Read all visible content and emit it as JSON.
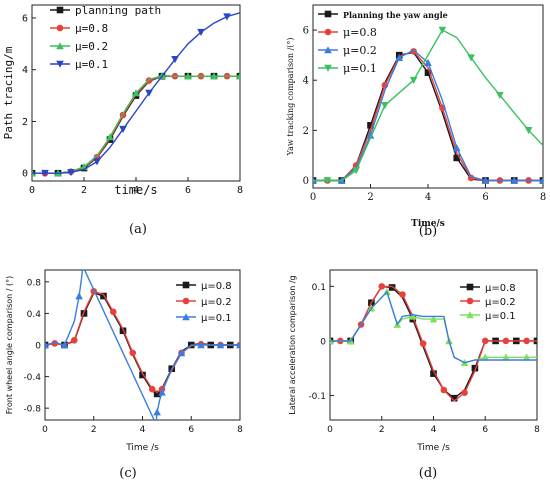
{
  "colors": {
    "black": "#1a1a1a",
    "red": "#e8403a",
    "blue": "#3a7de0",
    "green": "#3cc060",
    "blue_dark": "#2a45c8",
    "green_light": "#7ee05a",
    "frame": "#222222"
  },
  "chart_data": [
    {
      "id": "a",
      "type": "line",
      "caption": "(a)",
      "xlabel": "time/s",
      "ylabel": "Path tracing/m",
      "xlim": [
        0,
        8
      ],
      "ylim": [
        -0.3,
        6.5
      ],
      "xticks": [
        0,
        2,
        4,
        6,
        8
      ],
      "yticks": [
        0,
        2,
        4,
        6
      ],
      "xtick_labels": [
        "0",
        "2",
        "4",
        "6",
        "8"
      ],
      "ytick_labels": [
        "0",
        "2",
        "4",
        "6"
      ],
      "legend": {
        "placement": "top-left",
        "entries": [
          "planning path",
          "μ=0.8",
          "μ=0.2",
          "μ=0.1"
        ]
      },
      "series": [
        {
          "name": "planning path",
          "color": "#1a1a1a",
          "marker": "square",
          "x": [
            0,
            0.5,
            1,
            1.5,
            2,
            2.5,
            3,
            3.5,
            4,
            4.5,
            5,
            5.5,
            6,
            6.5,
            7,
            7.5,
            8
          ],
          "y": [
            0,
            0,
            0,
            0.05,
            0.2,
            0.6,
            1.3,
            2.2,
            3.0,
            3.55,
            3.75,
            3.75,
            3.75,
            3.75,
            3.75,
            3.75,
            3.75
          ]
        },
        {
          "name": "μ=0.8",
          "color": "#e8403a",
          "marker": "circle",
          "x": [
            0,
            0.5,
            1,
            1.5,
            2,
            2.5,
            3,
            3.5,
            4,
            4.5,
            5,
            5.5,
            6,
            6.5,
            7,
            7.5,
            8
          ],
          "y": [
            0,
            0,
            0,
            0.06,
            0.22,
            0.62,
            1.35,
            2.25,
            3.05,
            3.58,
            3.76,
            3.75,
            3.75,
            3.75,
            3.75,
            3.75,
            3.75
          ]
        },
        {
          "name": "μ=0.2",
          "color": "#3cc060",
          "marker": "triangle-up",
          "x": [
            0,
            0.5,
            1,
            1.5,
            2,
            2.5,
            3,
            3.5,
            4,
            4.5,
            5,
            5.5,
            6,
            6.5,
            7,
            7.5,
            8
          ],
          "y": [
            0,
            0,
            0,
            0.07,
            0.25,
            0.68,
            1.4,
            2.3,
            3.1,
            3.62,
            3.77,
            3.75,
            3.75,
            3.75,
            3.75,
            3.75,
            3.75
          ]
        },
        {
          "name": "μ=0.1",
          "color": "#2a45c8",
          "marker": "triangle-down",
          "x": [
            0,
            0.5,
            1,
            1.5,
            2,
            2.5,
            3,
            3.5,
            4,
            4.5,
            5,
            5.5,
            6,
            6.5,
            7,
            7.5,
            8
          ],
          "y": [
            0,
            0,
            0,
            0.03,
            0.15,
            0.45,
            1.0,
            1.7,
            2.4,
            3.1,
            3.75,
            4.4,
            5.0,
            5.45,
            5.8,
            6.05,
            6.2
          ]
        }
      ]
    },
    {
      "id": "b",
      "type": "line",
      "caption": "(b)",
      "xlabel": "Time/s",
      "ylabel": "Yaw tracking comparison /(°)",
      "xlim": [
        0,
        8
      ],
      "ylim": [
        -0.3,
        7.0
      ],
      "xticks": [
        0,
        2,
        4,
        6,
        8
      ],
      "yticks": [
        0,
        2,
        4,
        6
      ],
      "xtick_labels": [
        "0",
        "2",
        "4",
        "6",
        "8"
      ],
      "ytick_labels": [
        "0",
        "2",
        "4",
        "6"
      ],
      "legend": {
        "placement": "top-left",
        "entries": [
          "Planning the yaw angle",
          "μ=0.8",
          "μ=0.2",
          "μ=0.1"
        ]
      },
      "series": [
        {
          "name": "Planning the yaw angle",
          "color": "#1a1a1a",
          "marker": "square",
          "x": [
            0,
            0.5,
            1,
            1.5,
            2,
            2.5,
            3,
            3.5,
            4,
            4.5,
            5,
            5.5,
            6,
            6.5,
            7,
            7.5,
            8
          ],
          "y": [
            0,
            0,
            0,
            0.6,
            2.2,
            3.9,
            5.0,
            5.1,
            4.3,
            2.7,
            0.9,
            0.05,
            0,
            0,
            0,
            0,
            0
          ]
        },
        {
          "name": "μ=0.8",
          "color": "#e8403a",
          "marker": "circle",
          "x": [
            0,
            0.5,
            1,
            1.5,
            2,
            2.5,
            3,
            3.5,
            4,
            4.5,
            5,
            5.5,
            6,
            6.5,
            7,
            7.5,
            8
          ],
          "y": [
            0,
            0,
            0,
            0.6,
            2.0,
            3.8,
            4.95,
            5.15,
            4.5,
            2.9,
            1.1,
            0.1,
            0,
            0,
            0,
            0,
            0
          ]
        },
        {
          "name": "μ=0.2",
          "color": "#3a7de0",
          "marker": "triangle-up",
          "x": [
            0,
            0.5,
            1,
            1.5,
            2,
            2.5,
            3,
            3.5,
            4,
            4.5,
            5,
            5.5,
            6,
            6.5,
            7,
            7.5,
            8
          ],
          "y": [
            0,
            0,
            0,
            0.5,
            1.8,
            3.6,
            4.9,
            5.2,
            4.7,
            3.2,
            1.3,
            0.15,
            0,
            0,
            0,
            0,
            0
          ]
        },
        {
          "name": "μ=0.1",
          "color": "#3cc060",
          "marker": "triangle-down",
          "x": [
            0,
            0.5,
            1,
            1.5,
            2,
            2.5,
            3,
            3.5,
            4,
            4.5,
            5,
            5.5,
            6,
            6.5,
            7,
            7.5,
            8
          ],
          "y": [
            0,
            0,
            0,
            0.4,
            1.7,
            3.0,
            3.5,
            4.0,
            5.0,
            6.0,
            5.7,
            4.9,
            4.1,
            3.4,
            2.7,
            2.0,
            1.4
          ]
        }
      ]
    },
    {
      "id": "c",
      "type": "line",
      "caption": "(c)",
      "xlabel": "Time /s",
      "ylabel": "Front wheel angle comparison / (°)",
      "xlim": [
        0,
        8
      ],
      "ylim": [
        -0.95,
        0.95
      ],
      "xticks": [
        0,
        2,
        4,
        6,
        8
      ],
      "yticks": [
        -0.8,
        -0.4,
        0,
        0.4,
        0.8
      ],
      "xtick_labels": [
        "0",
        "2",
        "4",
        "6",
        "8"
      ],
      "ytick_labels": [
        "-0.8",
        "-0.4",
        "0",
        "0.4",
        "0.8"
      ],
      "legend": {
        "placement": "top-right",
        "entries": [
          "μ=0.8",
          "μ=0.2",
          "μ=0.1"
        ]
      },
      "series": [
        {
          "name": "μ=0.8",
          "color": "#1a1a1a",
          "marker": "square",
          "x": [
            0,
            0.4,
            0.8,
            1.2,
            1.6,
            2.0,
            2.4,
            2.8,
            3.2,
            3.6,
            4.0,
            4.4,
            4.6,
            4.8,
            5.2,
            5.6,
            6.0,
            6.4,
            6.8,
            7.2,
            7.6,
            8.0
          ],
          "y": [
            0,
            0.02,
            0,
            0.05,
            0.4,
            0.66,
            0.62,
            0.4,
            0.18,
            -0.12,
            -0.38,
            -0.58,
            -0.62,
            -0.55,
            -0.3,
            -0.08,
            0.0,
            0.02,
            0.0,
            0.0,
            0.0,
            0.0
          ]
        },
        {
          "name": "μ=0.2",
          "color": "#e8403a",
          "marker": "circle",
          "x": [
            0,
            0.4,
            0.8,
            1.2,
            1.6,
            2.0,
            2.4,
            2.8,
            3.2,
            3.6,
            4.0,
            4.4,
            4.6,
            4.8,
            5.2,
            5.6,
            6.0,
            6.4,
            6.8,
            7.2,
            7.6,
            8.0
          ],
          "y": [
            0,
            0.02,
            0,
            0.06,
            0.42,
            0.68,
            0.64,
            0.42,
            0.2,
            -0.1,
            -0.36,
            -0.56,
            -0.6,
            -0.56,
            -0.32,
            -0.1,
            -0.01,
            0.01,
            0.0,
            0.0,
            0.0,
            0.0
          ]
        },
        {
          "name": "μ=0.1",
          "color": "#3a7de0",
          "marker": "triangle-up",
          "x": [
            0,
            0.4,
            0.8,
            1.2,
            1.4,
            1.5,
            1.55,
            4.55,
            4.6,
            4.7,
            4.8,
            5.2,
            5.6,
            6.0,
            6.4,
            6.8,
            7.2,
            7.6,
            8.0
          ],
          "y": [
            0,
            0.03,
            0,
            0.3,
            0.62,
            0.85,
            1.0,
            -1.0,
            -0.85,
            -0.7,
            -0.6,
            -0.3,
            -0.1,
            0.0,
            0.0,
            0.0,
            0.0,
            0.0,
            0.0
          ]
        }
      ]
    },
    {
      "id": "d",
      "type": "line",
      "caption": "(d)",
      "xlabel": "Time /s",
      "ylabel": "Lateral acceleration comparison /g",
      "xlim": [
        0,
        8
      ],
      "ylim": [
        -0.145,
        0.13
      ],
      "xticks": [
        0,
        2,
        4,
        6,
        8
      ],
      "yticks": [
        -0.1,
        0,
        0.1
      ],
      "xtick_labels": [
        "0",
        "2",
        "4",
        "6",
        "8"
      ],
      "ytick_labels": [
        "-0.1",
        "0",
        "0.1"
      ],
      "legend": {
        "placement": "top-right",
        "entries": [
          "μ=0.8",
          "μ=0.2",
          "μ=0.1"
        ]
      },
      "series": [
        {
          "name": "μ=0.8",
          "color": "#1a1a1a",
          "marker": "square",
          "x": [
            0,
            0.4,
            0.8,
            1.2,
            1.6,
            2.0,
            2.4,
            2.8,
            3.2,
            3.6,
            4.0,
            4.4,
            4.8,
            5.2,
            5.6,
            6.0,
            6.4,
            6.8,
            7.2,
            7.6,
            8.0
          ],
          "y": [
            0,
            0.0,
            0.0,
            0.03,
            0.07,
            0.1,
            0.098,
            0.08,
            0.04,
            -0.01,
            -0.06,
            -0.09,
            -0.105,
            -0.09,
            -0.05,
            0.0,
            0.0,
            0.0,
            0.0,
            0.0,
            0.0
          ]
        },
        {
          "name": "μ=0.2",
          "color": "#e8403a",
          "marker": "circle",
          "x": [
            0,
            0.4,
            0.8,
            1.2,
            1.6,
            2.0,
            2.4,
            2.8,
            3.2,
            3.6,
            4.0,
            4.4,
            4.8,
            5.2,
            5.6,
            6.0,
            6.4,
            6.8,
            7.2,
            7.6,
            8.0
          ],
          "y": [
            0,
            0.0,
            0.0,
            0.03,
            0.07,
            0.1,
            0.1,
            0.085,
            0.045,
            -0.005,
            -0.055,
            -0.09,
            -0.11,
            -0.095,
            -0.055,
            0.0,
            0.0,
            0.0,
            0.0,
            0.0,
            0.0
          ]
        },
        {
          "name": "μ=0.1",
          "color": "#7ee05a",
          "marker": "triangle-up",
          "x": [
            0,
            0.4,
            0.8,
            1.2,
            1.6,
            2.0,
            2.2,
            2.4,
            2.6,
            2.8,
            3.2,
            3.6,
            4.0,
            4.4,
            4.6,
            4.8,
            5.2,
            5.6,
            6.0,
            6.4,
            6.8,
            7.2,
            7.6,
            8.0
          ],
          "y": [
            0,
            0.0,
            0.0,
            0.03,
            0.06,
            0.08,
            0.09,
            0.06,
            0.03,
            0.04,
            0.045,
            0.04,
            0.04,
            0.04,
            0.0,
            -0.03,
            -0.04,
            -0.035,
            -0.03,
            -0.03,
            -0.03,
            -0.03,
            -0.03,
            -0.03
          ]
        },
        {
          "name": "",
          "color": "#3a7de0",
          "marker": "none",
          "x": [
            0,
            0.4,
            0.8,
            1.2,
            1.6,
            2.0,
            2.2,
            2.4,
            2.6,
            2.8,
            3.2,
            3.6,
            4.0,
            4.4,
            4.6,
            4.8,
            5.2,
            5.6,
            6.0,
            6.4,
            6.8,
            7.2,
            7.6,
            8.0
          ],
          "y": [
            0,
            0.0,
            0.0,
            0.03,
            0.06,
            0.08,
            0.09,
            0.06,
            0.03,
            0.045,
            0.048,
            0.045,
            0.045,
            0.045,
            0.0,
            -0.03,
            -0.04,
            -0.035,
            -0.035,
            -0.035,
            -0.035,
            -0.035,
            -0.035,
            -0.035
          ]
        }
      ]
    }
  ]
}
